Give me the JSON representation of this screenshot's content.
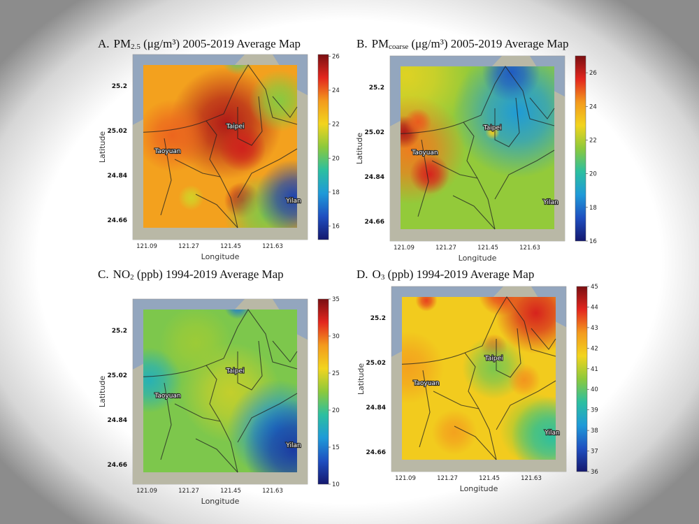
{
  "panels": [
    {
      "label": "A.",
      "species": "PM",
      "subscript": "2.5",
      "rest": " (μg/m³) 2005-2019 Average Map",
      "colorbar": {
        "min": 15.2,
        "max": 26.1,
        "ticks": [
          "26",
          "24",
          "22",
          "20",
          "18",
          "16"
        ]
      },
      "base_value": 23.2
    },
    {
      "label": "B.",
      "species": "PM",
      "subscript": "coarse",
      "rest": " (μg/m³) 2005-2019 Average Map",
      "colorbar": {
        "min": 16,
        "max": 27,
        "ticks": [
          "26",
          "24",
          "22",
          "20",
          "18",
          "16"
        ]
      },
      "base_value": 21.6
    },
    {
      "label": "C.",
      "species": "NO",
      "subscript": "2",
      "rest": " (ppb) 1994-2019 Average Map",
      "colorbar": {
        "min": 10,
        "max": 35,
        "ticks": [
          "35",
          "30",
          "25",
          "20",
          "15",
          "10"
        ]
      },
      "base_value": 22
    },
    {
      "label": "D.",
      "species": "O",
      "subscript": "3",
      "rest": " (ppb) 1994-2019 Average Map",
      "colorbar": {
        "min": 36,
        "max": 45,
        "ticks": [
          "45",
          "44",
          "43",
          "42",
          "41",
          "40",
          "39",
          "38",
          "37",
          "36"
        ]
      },
      "base_value": 41.8
    }
  ],
  "axes": {
    "xlabel": "Longitude",
    "ylabel": "Latitude",
    "lon_ticks": [
      "121.09",
      "121.27",
      "121.45",
      "121.63"
    ],
    "lat_ticks": [
      "25.2",
      "25.02",
      "24.84",
      "24.66"
    ]
  },
  "cities": [
    "Taipei",
    "Taoyuan",
    "Yilan"
  ],
  "colormap": [
    "#14186e",
    "#1f4fc0",
    "#1f9ad8",
    "#2cbfa0",
    "#8cc93c",
    "#f2d41e",
    "#f39a1e",
    "#e3261e",
    "#7a0f12"
  ],
  "sea_color": "#93a6be"
}
